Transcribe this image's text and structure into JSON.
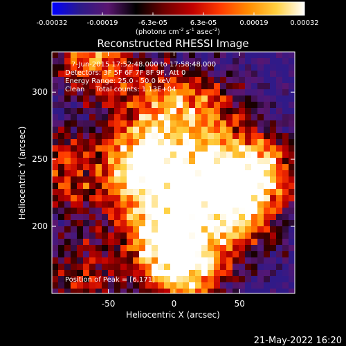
{
  "chart_data": {
    "type": "heatmap",
    "title": "Reconstructed RHESSI Image",
    "xlabel": "Heliocentric X (arcsec)",
    "ylabel": "Heliocentric Y (arcsec)",
    "xlim": [
      -93,
      92
    ],
    "ylim": [
      150,
      330
    ],
    "x_ticks": [
      -50,
      0,
      50
    ],
    "y_ticks": [
      200,
      250,
      300
    ],
    "colorbar": {
      "tick_labels": [
        "-0.00032",
        "-0.00019",
        "-6.3e-05",
        "6.3e-05",
        "0.00019",
        "0.00032"
      ],
      "range": [
        -0.00032,
        0.00032
      ],
      "unit_parts": [
        "(photons cm",
        "-2",
        " s",
        "-1",
        " asec",
        "-2",
        ")"
      ],
      "colors": [
        "#0000ff",
        "#2c1a8a",
        "#5a1670",
        "#000000",
        "#6e0000",
        "#c00000",
        "#ff3a00",
        "#ff8c00",
        "#ffd040",
        "#ffffff"
      ]
    },
    "annotations": [
      "7-Jun-2015 17:52:48.000 to 17:58:48.000",
      "Detectors: 3F 5F 6F 7F 8F 9F, Att 0",
      "Energy Range: 25.0 - 50.0 keV",
      "Clean     Total counts: 1.13E+04"
    ],
    "peak_label": "Position of Peak = [6,171]",
    "hotspots": [
      {
        "x": 8,
        "y": 170,
        "intensity": 1.0
      },
      {
        "x": -25,
        "y": 245,
        "intensity": 0.95
      },
      {
        "x": 65,
        "y": 240,
        "intensity": 0.9
      },
      {
        "x": 20,
        "y": 235,
        "intensity": 0.75
      },
      {
        "x": -60,
        "y": 325,
        "intensity": 0.7
      },
      {
        "x": -85,
        "y": 240,
        "intensity": 0.55
      },
      {
        "x": 45,
        "y": 205,
        "intensity": 0.6
      },
      {
        "x": -15,
        "y": 200,
        "intensity": 0.65
      },
      {
        "x": 25,
        "y": 285,
        "intensity": 0.5
      },
      {
        "x": -70,
        "y": 165,
        "intensity": 0.45
      },
      {
        "x": -10,
        "y": 290,
        "intensity": 0.55
      }
    ]
  },
  "footer_date": "21-May-2022 16:20"
}
